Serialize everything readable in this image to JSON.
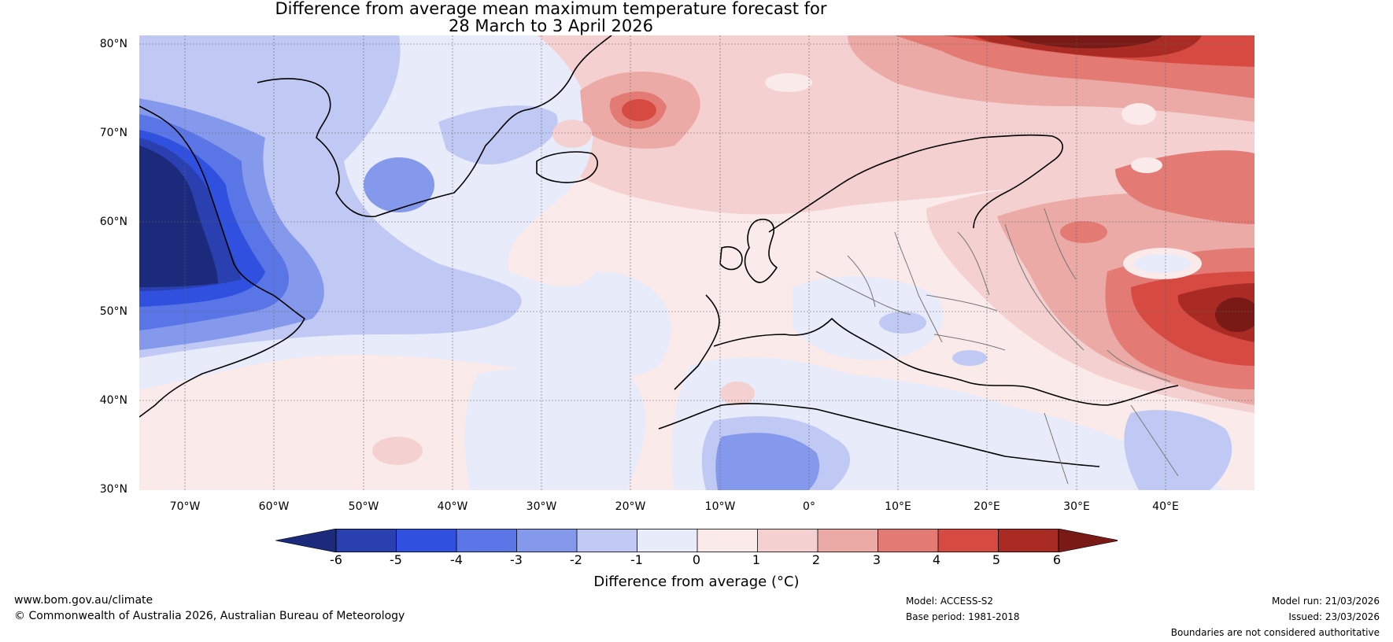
{
  "title": {
    "line1": "Difference from average mean maximum temperature forecast for",
    "line2": "28 March to 3 April 2026"
  },
  "map": {
    "region": "North Atlantic and Europe",
    "lat_labels": [
      "80°N",
      "70°N",
      "60°N",
      "50°N",
      "40°N",
      "30°N"
    ],
    "lon_labels": [
      "70°W",
      "60°W",
      "50°W",
      "40°W",
      "30°W",
      "20°W",
      "10°W",
      "0°",
      "10°E",
      "20°E",
      "30°E",
      "40°E"
    ]
  },
  "legend": {
    "ticks": [
      "-6",
      "-5",
      "-4",
      "-3",
      "-2",
      "-1",
      "0",
      "1",
      "2",
      "3",
      "4",
      "5",
      "6"
    ],
    "colors": [
      "#1b2a7a",
      "#2a3fb0",
      "#3050e0",
      "#5a75e6",
      "#8599ec",
      "#c0c9f4",
      "#e8ebfa",
      "#fbeaea",
      "#f4d0d0",
      "#ecaaa6",
      "#e37a74",
      "#d64a42",
      "#a92b24",
      "#7a1a16"
    ],
    "title": "Difference from average (°C)"
  },
  "footer": {
    "website": "www.bom.gov.au/climate",
    "copyright": "© Commonwealth of Australia 2026, Australian Bureau of Meteorology",
    "model": "Model: ACCESS-S2",
    "base_period": "Base period: 1981-2018",
    "model_run": "Model run: 21/03/2026",
    "issued": "Issued: 23/03/2026",
    "disclaimer": "Boundaries are not considered authoritative"
  }
}
